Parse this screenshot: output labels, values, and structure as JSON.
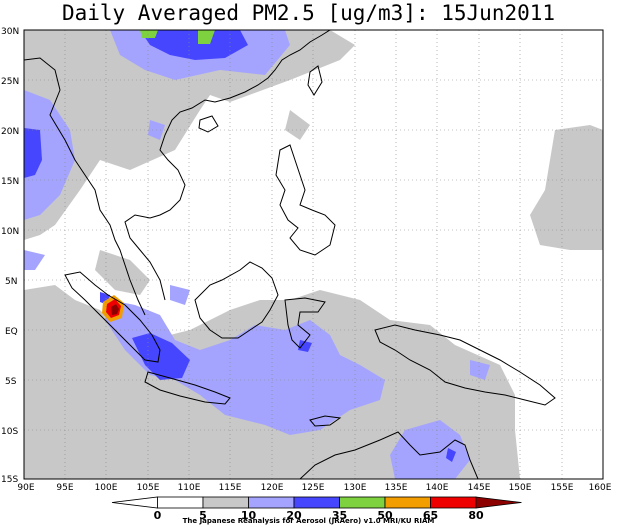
{
  "title": "Daily Averaged PM2.5 [ug/m3]: 15Jun2011",
  "credit": "The Japanese Reanalysis for Aerosol (JRAero) v1.0 MRI/KU RIAM",
  "map": {
    "lon_range": [
      90,
      160
    ],
    "lat_range": [
      -15,
      30
    ],
    "lon_ticks": [
      "90E",
      "95E",
      "100E",
      "105E",
      "110E",
      "115E",
      "120E",
      "125E",
      "130E",
      "135E",
      "140E",
      "145E",
      "150E",
      "155E",
      "160E"
    ],
    "lat_ticks": [
      "30N",
      "25N",
      "20N",
      "15N",
      "10N",
      "5N",
      "EQ",
      "5S",
      "10S",
      "15S"
    ],
    "grid": "dotted",
    "coastline_color": "#000000"
  },
  "colorbar": {
    "labels": [
      "0",
      "5",
      "10",
      "20",
      "35",
      "50",
      "65",
      "80"
    ],
    "colors": [
      "#ffffff",
      "#ffffff",
      "#c8c8c8",
      "#a4a4ff",
      "#4646ff",
      "#7fd23f",
      "#f29d00",
      "#ee0000",
      "#8c0000"
    ]
  },
  "palette": {
    "level_10": "#c8c8c8",
    "level_20": "#a4a4ff",
    "level_35": "#4646ff",
    "level_50": "#7fd23f",
    "level_65": "#f29d00",
    "level_80": "#ee0000",
    "level_max": "#8c0000"
  }
}
